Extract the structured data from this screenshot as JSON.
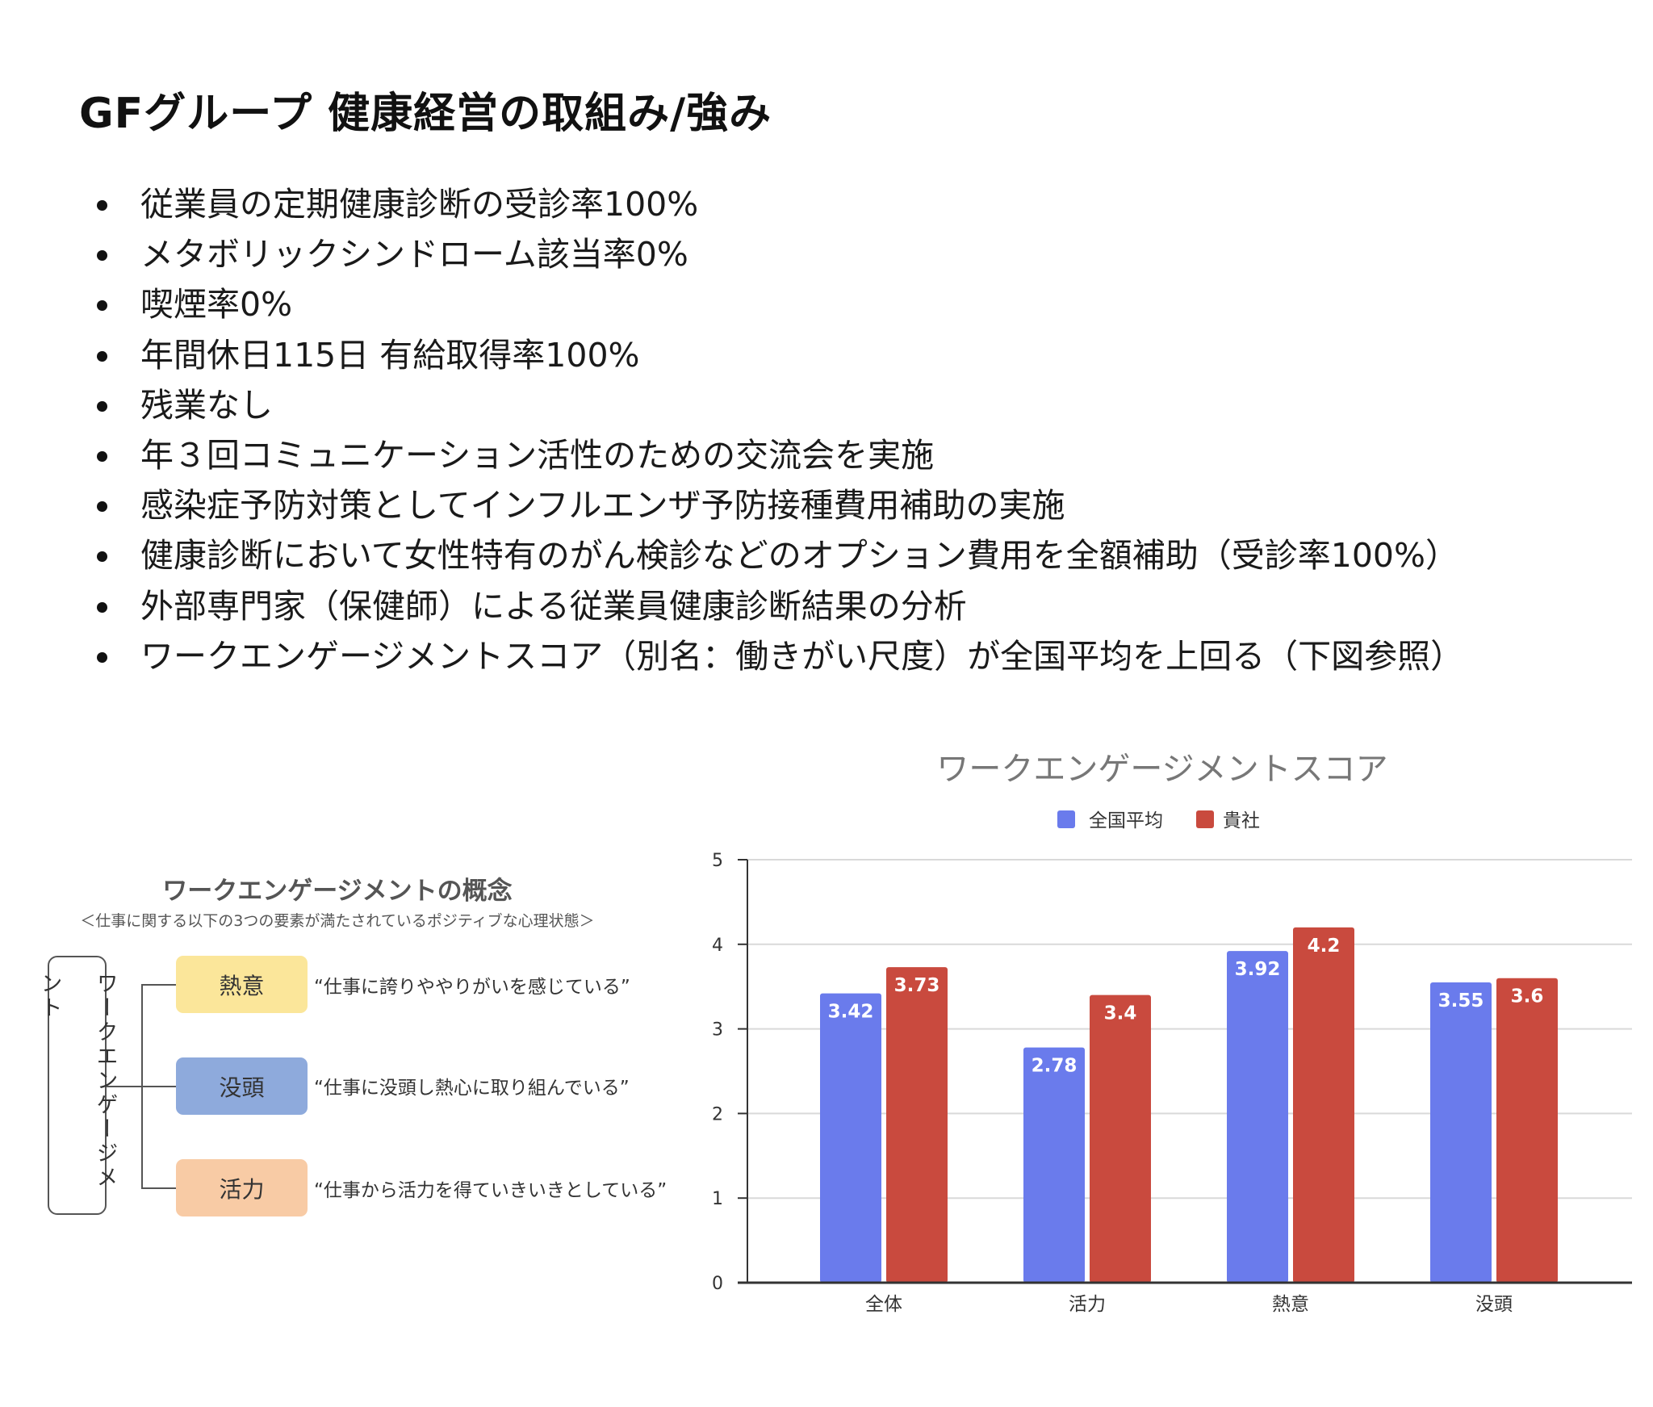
{
  "page": {
    "title": "GFグループ 健康経営の取組み/強み",
    "bullets": [
      "従業員の定期健康診断の受診率100%",
      "メタボリックシンドローム該当率0%",
      "喫煙率0%",
      "年間休日115日 有給取得率100%",
      "残業なし",
      "年３回コミュニケーション活性のための交流会を実施",
      "感染症予防対策としてインフルエンザ予防接種費用補助の実施",
      "健康診断において女性特有のがん検診などのオプション費用を全額補助（受診率100%）",
      "外部専門家（保健師）による従業員健康診断結果の分析",
      "ワークエンゲージメントスコア（別名：働きがい尺度）が全国平均を上回る（下図参照）"
    ]
  },
  "diagram": {
    "title": "ワークエンゲージメントの概念",
    "subtitle": "＜仕事に関する以下の3つの要素が満たされているポジティブな心理状態＞",
    "root": "ワークエンゲージメント",
    "items": [
      {
        "label": "熱意",
        "quote": "“仕事に誇りややりがいを感じている”",
        "color": "#fbe69a"
      },
      {
        "label": "没頭",
        "quote": "“仕事に没頭し熱心に取り組んでいる”",
        "color": "#8eaadc"
      },
      {
        "label": "活力",
        "quote": "“仕事から活力を得ていきいきとしている”",
        "color": "#f8cba5"
      }
    ]
  },
  "chart_data": {
    "type": "bar",
    "title": "ワークエンゲージメントスコア",
    "categories": [
      "全体",
      "活力",
      "熱意",
      "没頭"
    ],
    "series": [
      {
        "name": "全国平均",
        "values": [
          3.42,
          2.78,
          3.92,
          3.55
        ],
        "color": "#6a7bec"
      },
      {
        "name": "貴社",
        "values": [
          3.73,
          3.4,
          4.2,
          3.6
        ],
        "color": "#c94a3e"
      }
    ],
    "ylim": [
      0,
      5
    ],
    "yticks": [
      "0",
      "1",
      "2",
      "3",
      "4",
      "5"
    ],
    "grid": true,
    "legend": "top",
    "data_labels": true
  }
}
